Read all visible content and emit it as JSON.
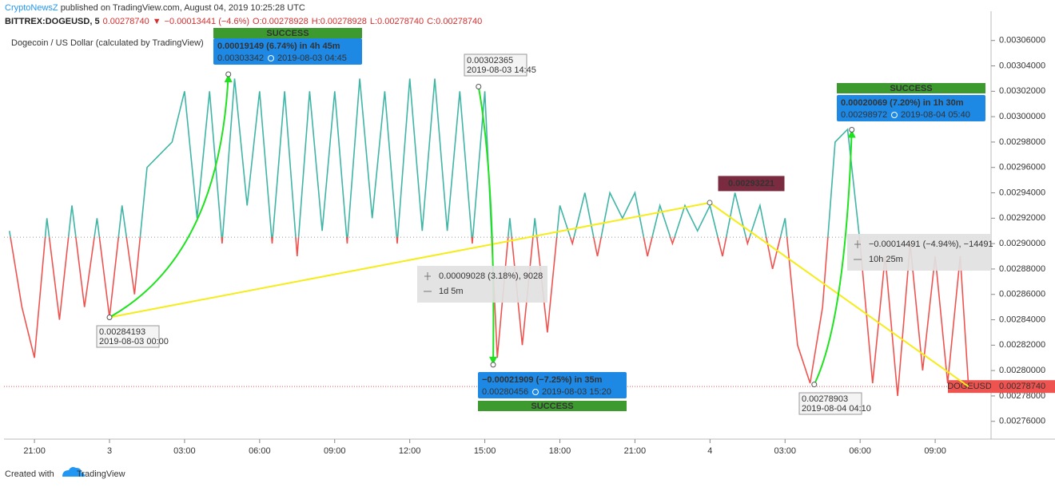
{
  "header": {
    "author": "CryptoNewsZ",
    "published": "published on TradingView.com, August 04, 2019 10:25:28 UTC",
    "symbol": "BITTREX:DOGEUSD, 5",
    "quote": [
      "0.00278740",
      "▼",
      "−0.00013441 (−4.6%)",
      "O:0.00278928",
      "H:0.00278928",
      "L:0.00278740",
      "C:0.00278740"
    ]
  },
  "footer": {
    "text": "Created with",
    "brand": "TradingView"
  },
  "chart_data": {
    "type": "line",
    "title": "Dogecoin / US Dollar (calculated by TradingView)",
    "baseline": 0.002905,
    "colors": {
      "above": "#3fb5a6",
      "below": "#ef5350"
    },
    "xlim": [
      "2019-08-02 19:47",
      "2019-08-04 11:14"
    ],
    "ylim": [
      0.002746,
      0.003068
    ],
    "xticks": [
      {
        "value": "2019-08-02 21:00",
        "label": "21:00"
      },
      {
        "value": "2019-08-03 00:00",
        "label": "3"
      },
      {
        "value": "2019-08-03 03:00",
        "label": "03:00"
      },
      {
        "value": "2019-08-03 06:00",
        "label": "06:00"
      },
      {
        "value": "2019-08-03 09:00",
        "label": "09:00"
      },
      {
        "value": "2019-08-03 12:00",
        "label": "12:00"
      },
      {
        "value": "2019-08-03 15:00",
        "label": "15:00"
      },
      {
        "value": "2019-08-03 18:00",
        "label": "18:00"
      },
      {
        "value": "2019-08-03 21:00",
        "label": "21:00"
      },
      {
        "value": "2019-08-04 00:00",
        "label": "4"
      },
      {
        "value": "2019-08-04 03:00",
        "label": "03:00"
      },
      {
        "value": "2019-08-04 06:00",
        "label": "06:00"
      },
      {
        "value": "2019-08-04 09:00",
        "label": "09:00"
      }
    ],
    "yticks": [
      {
        "value": 0.00306,
        "label": "0.00306000"
      },
      {
        "value": 0.00304,
        "label": "0.00304000"
      },
      {
        "value": 0.00302,
        "label": "0.00302000"
      },
      {
        "value": 0.003,
        "label": "0.00300000"
      },
      {
        "value": 0.00298,
        "label": "0.00298000"
      },
      {
        "value": 0.00296,
        "label": "0.00296000"
      },
      {
        "value": 0.00294,
        "label": "0.00294000"
      },
      {
        "value": 0.00292,
        "label": "0.00292000"
      },
      {
        "value": 0.0029,
        "label": "0.00290000"
      },
      {
        "value": 0.00288,
        "label": "0.00288000"
      },
      {
        "value": 0.00286,
        "label": "0.00286000"
      },
      {
        "value": 0.00284,
        "label": "0.00284000"
      },
      {
        "value": 0.00282,
        "label": "0.00282000"
      },
      {
        "value": 0.0028,
        "label": "0.00280000"
      },
      {
        "value": 0.00278,
        "label": "0.00278000"
      },
      {
        "value": 0.00276,
        "label": "0.00276000"
      }
    ],
    "x": [
      "2019-08-02 20:00",
      "2019-08-02 20:30",
      "2019-08-02 21:00",
      "2019-08-02 21:30",
      "2019-08-02 22:00",
      "2019-08-02 22:30",
      "2019-08-02 23:00",
      "2019-08-02 23:30",
      "2019-08-03 00:00",
      "2019-08-03 00:30",
      "2019-08-03 01:00",
      "2019-08-03 01:30",
      "2019-08-03 02:00",
      "2019-08-03 02:30",
      "2019-08-03 03:00",
      "2019-08-03 03:30",
      "2019-08-03 04:00",
      "2019-08-03 04:30",
      "2019-08-03 05:00",
      "2019-08-03 05:30",
      "2019-08-03 06:00",
      "2019-08-03 06:30",
      "2019-08-03 07:00",
      "2019-08-03 07:30",
      "2019-08-03 08:00",
      "2019-08-03 08:30",
      "2019-08-03 09:00",
      "2019-08-03 09:30",
      "2019-08-03 10:00",
      "2019-08-03 10:30",
      "2019-08-03 11:00",
      "2019-08-03 11:30",
      "2019-08-03 12:00",
      "2019-08-03 12:30",
      "2019-08-03 13:00",
      "2019-08-03 13:30",
      "2019-08-03 14:00",
      "2019-08-03 14:30",
      "2019-08-03 15:00",
      "2019-08-03 15:30",
      "2019-08-03 16:00",
      "2019-08-03 16:30",
      "2019-08-03 17:00",
      "2019-08-03 17:30",
      "2019-08-03 18:00",
      "2019-08-03 18:30",
      "2019-08-03 19:00",
      "2019-08-03 19:30",
      "2019-08-03 20:00",
      "2019-08-03 20:30",
      "2019-08-03 21:00",
      "2019-08-03 21:30",
      "2019-08-03 22:00",
      "2019-08-03 22:30",
      "2019-08-03 23:00",
      "2019-08-03 23:30",
      "2019-08-04 00:00",
      "2019-08-04 00:30",
      "2019-08-04 01:00",
      "2019-08-04 01:30",
      "2019-08-04 02:00",
      "2019-08-04 02:30",
      "2019-08-04 03:00",
      "2019-08-04 03:30",
      "2019-08-04 04:00",
      "2019-08-04 04:30",
      "2019-08-04 05:00",
      "2019-08-04 05:30",
      "2019-08-04 06:00",
      "2019-08-04 06:30",
      "2019-08-04 07:00",
      "2019-08-04 07:30",
      "2019-08-04 08:00",
      "2019-08-04 08:30",
      "2019-08-04 09:00",
      "2019-08-04 09:30",
      "2019-08-04 10:00",
      "2019-08-04 10:20"
    ],
    "series": [
      {
        "name": "DOGEUSD",
        "values": [
          0.00291,
          0.00285,
          0.00281,
          0.00292,
          0.00284,
          0.00293,
          0.00285,
          0.00292,
          0.00284193,
          0.00293,
          0.00286,
          0.00296,
          0.00297,
          0.00298,
          0.00302,
          0.00292,
          0.00302,
          0.0029,
          0.00303,
          0.00293,
          0.00302,
          0.0029,
          0.00302,
          0.00289,
          0.00302,
          0.00291,
          0.00302,
          0.0029,
          0.00303,
          0.00292,
          0.00302,
          0.0029,
          0.00303,
          0.00291,
          0.00303,
          0.00291,
          0.00302,
          0.0029,
          0.00302,
          0.00281,
          0.00292,
          0.00282,
          0.00292,
          0.00283,
          0.00293,
          0.0029,
          0.00294,
          0.00289,
          0.00294,
          0.00292,
          0.00294,
          0.00289,
          0.00293,
          0.0029,
          0.00293,
          0.00291,
          0.00293,
          0.00289,
          0.00294,
          0.0029,
          0.00293,
          0.00288,
          0.00292,
          0.00282,
          0.00279,
          0.00285,
          0.00298,
          0.00299,
          0.0029,
          0.00279,
          0.00289,
          0.00278,
          0.0029,
          0.0028,
          0.00289,
          0.00279,
          0.00289,
          0.0027874
        ]
      }
    ],
    "last_price": {
      "value": 0.0027874,
      "label": "0.00278740"
    },
    "peak_label": 0.00293221,
    "points": [
      {
        "price": 0.00284193,
        "time": "2019-08-03 00:00"
      },
      {
        "price": 0.00302365,
        "time": "2019-08-03 14:45"
      },
      {
        "price": 0.00278903,
        "time": "2019-08-04 04:10"
      }
    ],
    "forecasts": [
      {
        "change": "0.00019149 (6.74%) in 4h 45m",
        "price": 0.00303342,
        "time": "2019-08-03 04:45",
        "status": "SUCCESS"
      },
      {
        "change": "−0.00021909 (−7.25%) in 35m",
        "price": 0.00280456,
        "time": "2019-08-03 15:20",
        "status": "SUCCESS"
      },
      {
        "change": "0.00020069 (7.20%) in 1h 30m",
        "price": 0.00298972,
        "time": "2019-08-04 05:40",
        "status": "SUCCESS"
      }
    ],
    "ranges": [
      {
        "change": "0.00009028 (3.18%), 9028",
        "duration": "1d 5m"
      },
      {
        "change": "−0.00014491 (−4.94%), −14491",
        "duration": "10h 25m"
      }
    ]
  }
}
